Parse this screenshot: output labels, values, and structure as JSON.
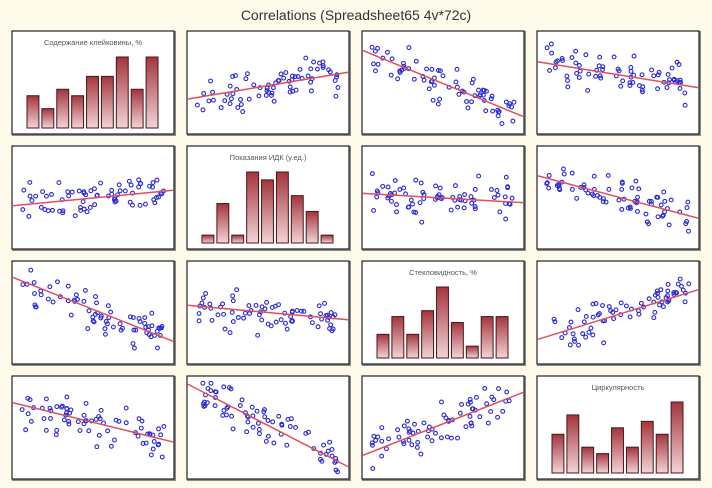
{
  "window": {
    "title": "Correlations (Spreadsheet65 4v*72c)"
  },
  "chart_data": {
    "type": "scatter-matrix",
    "title": "Correlations (Spreadsheet65 4v*72c)",
    "variables": [
      "Содержание клейковины, %",
      "Показания ИДК (у.ед.)",
      "Стекловидность, %",
      "Циркулярность"
    ],
    "n_cases": 72,
    "histograms": [
      {
        "variable": "Содержание клейковины, %",
        "relative_counts": [
          5,
          3,
          6,
          5,
          8,
          8,
          11,
          6,
          11
        ]
      },
      {
        "variable": "Показания ИДК (у.ед.)",
        "relative_counts": [
          1,
          5,
          1,
          9,
          8,
          9,
          6,
          4,
          1
        ]
      },
      {
        "variable": "Стекловидность, %",
        "relative_counts": [
          4,
          7,
          4,
          8,
          12,
          6,
          2,
          7,
          7
        ]
      },
      {
        "variable": "Циркулярность",
        "relative_counts": [
          6,
          9,
          4,
          3,
          7,
          4,
          8,
          6,
          11
        ]
      }
    ],
    "fit_lines": [
      {
        "row": 0,
        "col": 1,
        "slope_direction": "positive",
        "y_left": 0.66,
        "y_right": 0.4
      },
      {
        "row": 0,
        "col": 2,
        "slope_direction": "negative",
        "y_left": 0.19,
        "y_right": 0.83
      },
      {
        "row": 0,
        "col": 3,
        "slope_direction": "negative",
        "y_left": 0.3,
        "y_right": 0.55
      },
      {
        "row": 1,
        "col": 0,
        "slope_direction": "positive",
        "y_left": 0.58,
        "y_right": 0.43
      },
      {
        "row": 1,
        "col": 2,
        "slope_direction": "negative",
        "y_left": 0.46,
        "y_right": 0.55
      },
      {
        "row": 1,
        "col": 3,
        "slope_direction": "negative",
        "y_left": 0.29,
        "y_right": 0.7
      },
      {
        "row": 2,
        "col": 0,
        "slope_direction": "negative",
        "y_left": 0.16,
        "y_right": 0.78
      },
      {
        "row": 2,
        "col": 1,
        "slope_direction": "negative",
        "y_left": 0.43,
        "y_right": 0.57
      },
      {
        "row": 2,
        "col": 3,
        "slope_direction": "positive",
        "y_left": 0.76,
        "y_right": 0.28
      },
      {
        "row": 3,
        "col": 0,
        "slope_direction": "negative",
        "y_left": 0.26,
        "y_right": 0.64
      },
      {
        "row": 3,
        "col": 1,
        "slope_direction": "negative",
        "y_left": 0.08,
        "y_right": 0.88
      },
      {
        "row": 3,
        "col": 2,
        "slope_direction": "positive",
        "y_left": 0.77,
        "y_right": 0.16
      }
    ],
    "grid": false,
    "legend": "none",
    "colors": {
      "points": "#2a2ad4",
      "fit_line": "#e0505a",
      "bar_top": "#a3353c",
      "bar_bottom": "#f2d4d6",
      "background": "#fffbeb"
    }
  }
}
